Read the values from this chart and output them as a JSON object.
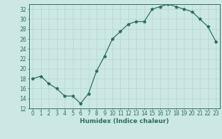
{
  "x": [
    0,
    1,
    2,
    3,
    4,
    5,
    6,
    7,
    8,
    9,
    10,
    11,
    12,
    13,
    14,
    15,
    16,
    17,
    18,
    19,
    20,
    21,
    22,
    23
  ],
  "y": [
    18,
    18.5,
    17,
    16,
    14.5,
    14.5,
    13,
    15,
    19.5,
    22.5,
    26,
    27.5,
    29,
    29.5,
    29.5,
    32,
    32.5,
    33,
    32.5,
    32,
    31.5,
    30,
    28.5,
    25.5
  ],
  "line_color": "#2d6b5e",
  "marker": "*",
  "marker_size": 3,
  "bg_color": "#cce8e4",
  "grid_color": "#b8d8d2",
  "xlabel": "Humidex (Indice chaleur)",
  "ylim": [
    12,
    33
  ],
  "xlim": [
    -0.5,
    23.5
  ],
  "yticks": [
    12,
    14,
    16,
    18,
    20,
    22,
    24,
    26,
    28,
    30,
    32
  ],
  "xticks": [
    0,
    1,
    2,
    3,
    4,
    5,
    6,
    7,
    8,
    9,
    10,
    11,
    12,
    13,
    14,
    15,
    16,
    17,
    18,
    19,
    20,
    21,
    22,
    23
  ],
  "font_color": "#2d6b5e",
  "xlabel_fontsize": 6.5,
  "tick_fontsize": 5.5,
  "linewidth": 0.9
}
